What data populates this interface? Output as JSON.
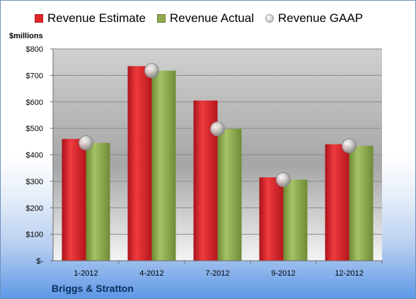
{
  "chart_data": {
    "type": "bar",
    "unit_label": "$millions",
    "categories": [
      "1-2012",
      "4-2012",
      "7-2012",
      "9-2012",
      "12-2012"
    ],
    "series": [
      {
        "name": "Revenue Estimate",
        "kind": "bar",
        "color": "#e0262b",
        "values": [
          460,
          735,
          605,
          315,
          440
        ]
      },
      {
        "name": "Revenue Actual",
        "kind": "bar",
        "color": "#8faa4f",
        "values": [
          445,
          718,
          498,
          306,
          434
        ]
      },
      {
        "name": "Revenue GAAP",
        "kind": "marker",
        "color": "#c8c8c8",
        "values": [
          445,
          718,
          498,
          306,
          434
        ]
      }
    ],
    "ylim": [
      0,
      800
    ],
    "yticks": [
      0,
      100,
      200,
      300,
      400,
      500,
      600,
      700,
      800
    ],
    "ytick_labels": [
      "$-",
      "$100",
      "$200",
      "$300",
      "$400",
      "$500",
      "$600",
      "$700",
      "$800"
    ],
    "grid": true,
    "legend_position": "top"
  },
  "company_name": "Briggs & Stratton"
}
